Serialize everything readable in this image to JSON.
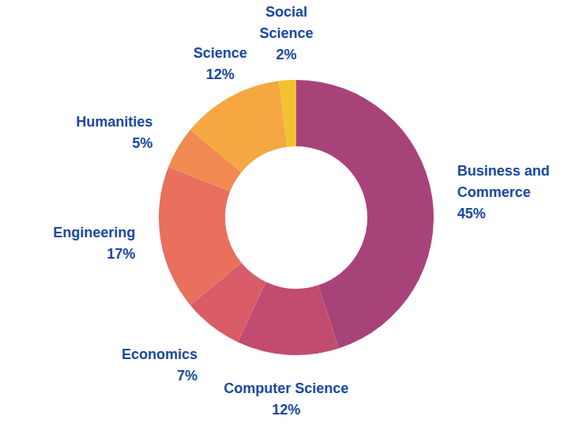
{
  "chart_data": {
    "type": "pie",
    "categories": [
      "Business and Commerce",
      "Computer Science",
      "Economics",
      "Engineering",
      "Humanities",
      "Science",
      "Social Science"
    ],
    "values": [
      45,
      12,
      7,
      17,
      5,
      12,
      2
    ],
    "value_labels": [
      "45%",
      "12%",
      "7%",
      "17%",
      "5%",
      "12%",
      "2%"
    ],
    "colors": [
      "#a8437a",
      "#c24b70",
      "#d95c68",
      "#e8705c",
      "#f08a52",
      "#f5a842",
      "#f2c22f"
    ],
    "data_labels": true
  }
}
